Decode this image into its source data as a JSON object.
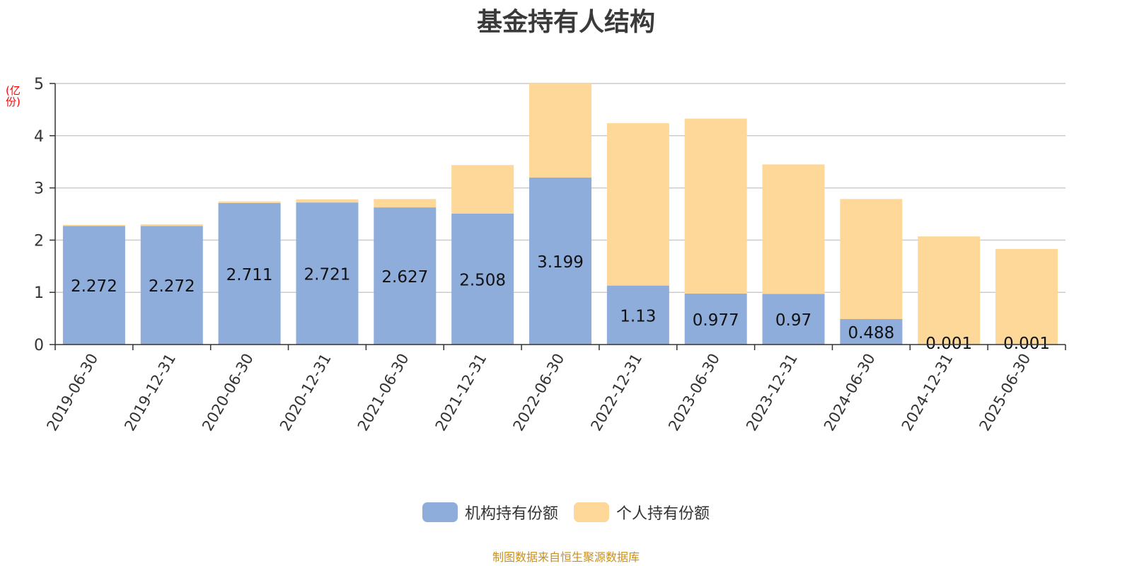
{
  "title": "基金持有人结构",
  "unit_label": "(亿份)",
  "source_note": "制图数据来自恒生聚源数据库",
  "colors": {
    "institutional": "#8eaddb",
    "individual": "#fed899",
    "grid": "#cccccc",
    "axis": "#333333",
    "text": "#333333"
  },
  "chart_data": {
    "type": "bar",
    "stacked": true,
    "categories": [
      "2019-06-30",
      "2019-12-31",
      "2020-06-30",
      "2020-12-31",
      "2021-06-30",
      "2021-12-31",
      "2022-06-30",
      "2022-12-31",
      "2023-06-30",
      "2023-12-31",
      "2024-06-30",
      "2024-12-31",
      "2025-06-30"
    ],
    "series": [
      {
        "name": "机构持有份额",
        "values": [
          2.272,
          2.272,
          2.711,
          2.721,
          2.627,
          2.508,
          3.199,
          1.13,
          0.977,
          0.97,
          0.488,
          0.001,
          0.001
        ],
        "data_labels": [
          "2.272",
          "2.272",
          "2.711",
          "2.721",
          "2.627",
          "2.508",
          "3.199",
          "1.13",
          "0.977",
          "0.97",
          "0.488",
          "0.001",
          "0.001"
        ]
      },
      {
        "name": "个人持有份额",
        "values": [
          0.02,
          0.03,
          0.03,
          0.06,
          0.16,
          0.93,
          1.8,
          3.11,
          3.35,
          2.48,
          2.3,
          2.07,
          1.83
        ]
      }
    ],
    "ylim": [
      0,
      5
    ],
    "yticks": [
      0,
      1,
      2,
      3,
      4,
      5
    ],
    "grid": true,
    "legend": "bottom-center",
    "xlabel_rotation": -60
  }
}
